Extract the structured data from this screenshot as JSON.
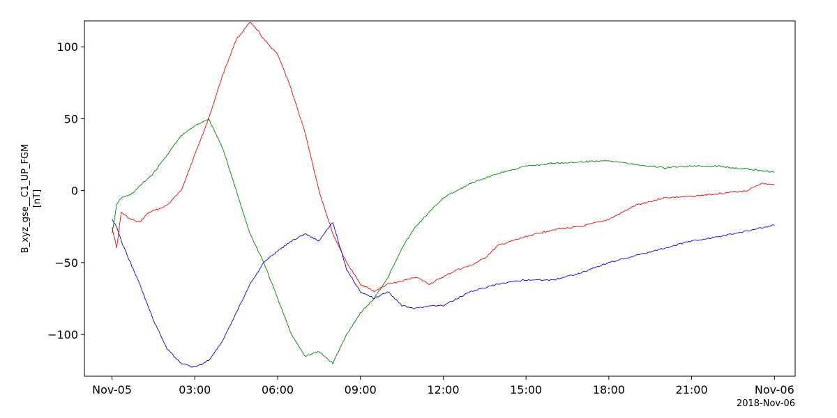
{
  "chart_data": {
    "type": "line",
    "title": "",
    "ylabel": "B_xyz_gse__C1_UP_FGM",
    "yunit": "[nT]",
    "xlabel": "",
    "date_label": "2018-Nov-06",
    "xlim": [
      "2018-11-04T23:00",
      "2018-11-06T00:45"
    ],
    "ylim": [
      -129,
      118
    ],
    "grid": false,
    "legend": "none",
    "xticks": [
      {
        "t": "2018-11-05T00:00",
        "label": "Nov-05"
      },
      {
        "t": "2018-11-05T03:00",
        "label": "03:00"
      },
      {
        "t": "2018-11-05T06:00",
        "label": "06:00"
      },
      {
        "t": "2018-11-05T09:00",
        "label": "09:00"
      },
      {
        "t": "2018-11-05T12:00",
        "label": "12:00"
      },
      {
        "t": "2018-11-05T15:00",
        "label": "15:00"
      },
      {
        "t": "2018-11-05T18:00",
        "label": "18:00"
      },
      {
        "t": "2018-11-05T21:00",
        "label": "21:00"
      },
      {
        "t": "2018-11-06T00:00",
        "label": "Nov-06"
      }
    ],
    "yticks": [
      {
        "v": 100,
        "label": "100"
      },
      {
        "v": 50,
        "label": "50"
      },
      {
        "v": 0,
        "label": "0"
      },
      {
        "v": -50,
        "label": "−50"
      },
      {
        "v": -100,
        "label": "−100"
      }
    ],
    "series": [
      {
        "color": "#ff0000",
        "x": [
          "2018-11-05T00:00",
          "2018-11-05T00:10",
          "2018-11-05T00:20",
          "2018-11-05T00:40",
          "2018-11-05T01:00",
          "2018-11-05T01:20",
          "2018-11-05T01:40",
          "2018-11-05T02:00",
          "2018-11-05T02:30",
          "2018-11-05T03:00",
          "2018-11-05T03:30",
          "2018-11-05T04:00",
          "2018-11-05T04:30",
          "2018-11-05T05:00",
          "2018-11-05T05:20",
          "2018-11-05T05:30",
          "2018-11-05T06:00",
          "2018-11-05T06:30",
          "2018-11-05T07:00",
          "2018-11-05T07:30",
          "2018-11-05T08:00",
          "2018-11-05T08:30",
          "2018-11-05T09:00",
          "2018-11-05T09:30",
          "2018-11-05T10:00",
          "2018-11-05T10:30",
          "2018-11-05T11:00",
          "2018-11-05T11:30",
          "2018-11-05T12:00",
          "2018-11-05T12:30",
          "2018-11-05T13:00",
          "2018-11-05T13:30",
          "2018-11-05T14:00",
          "2018-11-05T15:00",
          "2018-11-05T16:00",
          "2018-11-05T17:00",
          "2018-11-05T18:00",
          "2018-11-05T19:00",
          "2018-11-05T20:00",
          "2018-11-05T21:00",
          "2018-11-05T22:00",
          "2018-11-05T23:00",
          "2018-11-05T23:30",
          "2018-11-06T00:00"
        ],
        "y": [
          -25,
          -40,
          -15,
          -20,
          -22,
          -15,
          -13,
          -10,
          0,
          25,
          50,
          80,
          105,
          117,
          110,
          105,
          95,
          70,
          40,
          0,
          -30,
          -50,
          -65,
          -70,
          -65,
          -63,
          -60,
          -65,
          -60,
          -55,
          -52,
          -47,
          -38,
          -32,
          -27,
          -25,
          -20,
          -10,
          -5,
          -4,
          -2,
          0,
          5,
          4
        ]
      },
      {
        "color": "#008000",
        "x": [
          "2018-11-05T00:00",
          "2018-11-05T00:10",
          "2018-11-05T00:20",
          "2018-11-05T00:40",
          "2018-11-05T01:00",
          "2018-11-05T01:30",
          "2018-11-05T02:00",
          "2018-11-05T02:30",
          "2018-11-05T03:00",
          "2018-11-05T03:30",
          "2018-11-05T04:00",
          "2018-11-05T04:30",
          "2018-11-05T05:00",
          "2018-11-05T05:30",
          "2018-11-05T06:00",
          "2018-11-05T06:30",
          "2018-11-05T07:00",
          "2018-11-05T07:30",
          "2018-11-05T08:00",
          "2018-11-05T08:30",
          "2018-11-05T09:00",
          "2018-11-05T09:30",
          "2018-11-05T10:00",
          "2018-11-05T10:30",
          "2018-11-05T11:00",
          "2018-11-05T11:30",
          "2018-11-05T12:00",
          "2018-11-05T12:30",
          "2018-11-05T13:00",
          "2018-11-05T14:00",
          "2018-11-05T15:00",
          "2018-11-05T16:00",
          "2018-11-05T17:00",
          "2018-11-05T18:00",
          "2018-11-05T19:00",
          "2018-11-05T20:00",
          "2018-11-05T21:00",
          "2018-11-05T22:00",
          "2018-11-05T23:00",
          "2018-11-06T00:00"
        ],
        "y": [
          -30,
          -10,
          -5,
          -3,
          3,
          12,
          25,
          38,
          45,
          50,
          30,
          0,
          -30,
          -50,
          -75,
          -100,
          -115,
          -112,
          -120,
          -100,
          -85,
          -75,
          -60,
          -40,
          -25,
          -15,
          -5,
          0,
          5,
          12,
          17,
          19,
          20,
          21,
          18,
          16,
          17,
          17,
          15,
          13
        ]
      },
      {
        "color": "#0000ff",
        "x": [
          "2018-11-05T00:00",
          "2018-11-05T00:10",
          "2018-11-05T00:20",
          "2018-11-05T00:40",
          "2018-11-05T01:00",
          "2018-11-05T01:30",
          "2018-11-05T02:00",
          "2018-11-05T02:30",
          "2018-11-05T03:00",
          "2018-11-05T03:30",
          "2018-11-05T04:00",
          "2018-11-05T04:30",
          "2018-11-05T05:00",
          "2018-11-05T05:30",
          "2018-11-05T06:00",
          "2018-11-05T06:30",
          "2018-11-05T07:00",
          "2018-11-05T07:30",
          "2018-11-05T08:00",
          "2018-11-05T08:30",
          "2018-11-05T09:00",
          "2018-11-05T09:30",
          "2018-11-05T10:00",
          "2018-11-05T10:30",
          "2018-11-05T11:00",
          "2018-11-05T11:30",
          "2018-11-05T12:00",
          "2018-11-05T12:30",
          "2018-11-05T13:00",
          "2018-11-05T14:00",
          "2018-11-05T15:00",
          "2018-11-05T16:00",
          "2018-11-05T17:00",
          "2018-11-05T18:00",
          "2018-11-05T19:00",
          "2018-11-05T20:00",
          "2018-11-05T21:00",
          "2018-11-05T22:00",
          "2018-11-05T23:00",
          "2018-11-06T00:00"
        ],
        "y": [
          -20,
          -25,
          -35,
          -50,
          -65,
          -90,
          -110,
          -120,
          -123,
          -118,
          -105,
          -85,
          -65,
          -50,
          -42,
          -35,
          -30,
          -35,
          -22,
          -55,
          -70,
          -75,
          -70,
          -80,
          -82,
          -80,
          -80,
          -75,
          -70,
          -65,
          -62,
          -62,
          -57,
          -50,
          -45,
          -40,
          -35,
          -32,
          -28,
          -24
        ]
      }
    ]
  }
}
